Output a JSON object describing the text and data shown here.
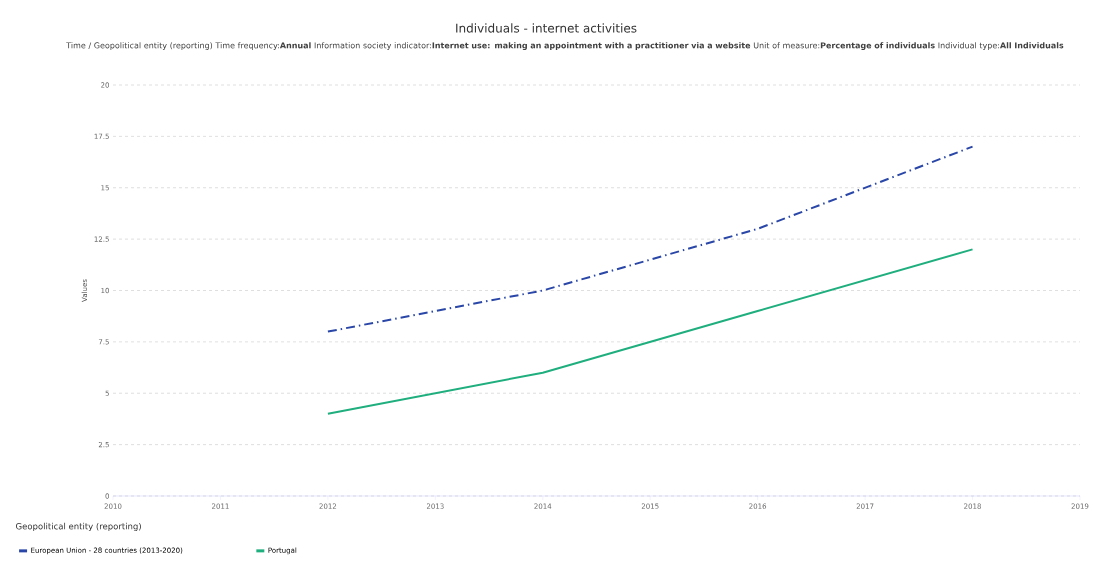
{
  "chart_data": {
    "type": "line",
    "title": "Individuals - internet activities",
    "subtitle": "Time / Geopolitical entity (reporting)  Time frequency:**Annual**  Information society indicator:**Internet use: making an appointment with a practitioner via a website**  Unit of measure:**Percentage of individuals**  Individual type:**All Individuals**",
    "ylabel": "Values",
    "legend_title": "Geopolitical entity (reporting)",
    "series": [
      {
        "name": "European Union - 28 countries (2013-2020)",
        "color": "#2a47a8",
        "line_style": "dashdotted",
        "x": [
          2012,
          2014,
          2016,
          2018
        ],
        "values": [
          8,
          10,
          13,
          17
        ]
      },
      {
        "name": "Portugal",
        "color": "#1fae7e",
        "line_style": "solid",
        "x": [
          2012,
          2014,
          2016,
          2018
        ],
        "values": [
          4,
          6,
          9,
          12
        ]
      }
    ],
    "xlim": [
      2010,
      2019
    ],
    "xticks": [
      2010,
      2011,
      2012,
      2013,
      2014,
      2015,
      2016,
      2017,
      2018,
      2019
    ],
    "ylim": [
      0,
      20
    ],
    "yticks": [
      0,
      2.5,
      5,
      7.5,
      10,
      12.5,
      15,
      17.5,
      20
    ],
    "grid": "y",
    "legend": "bottom",
    "marker": "none"
  }
}
